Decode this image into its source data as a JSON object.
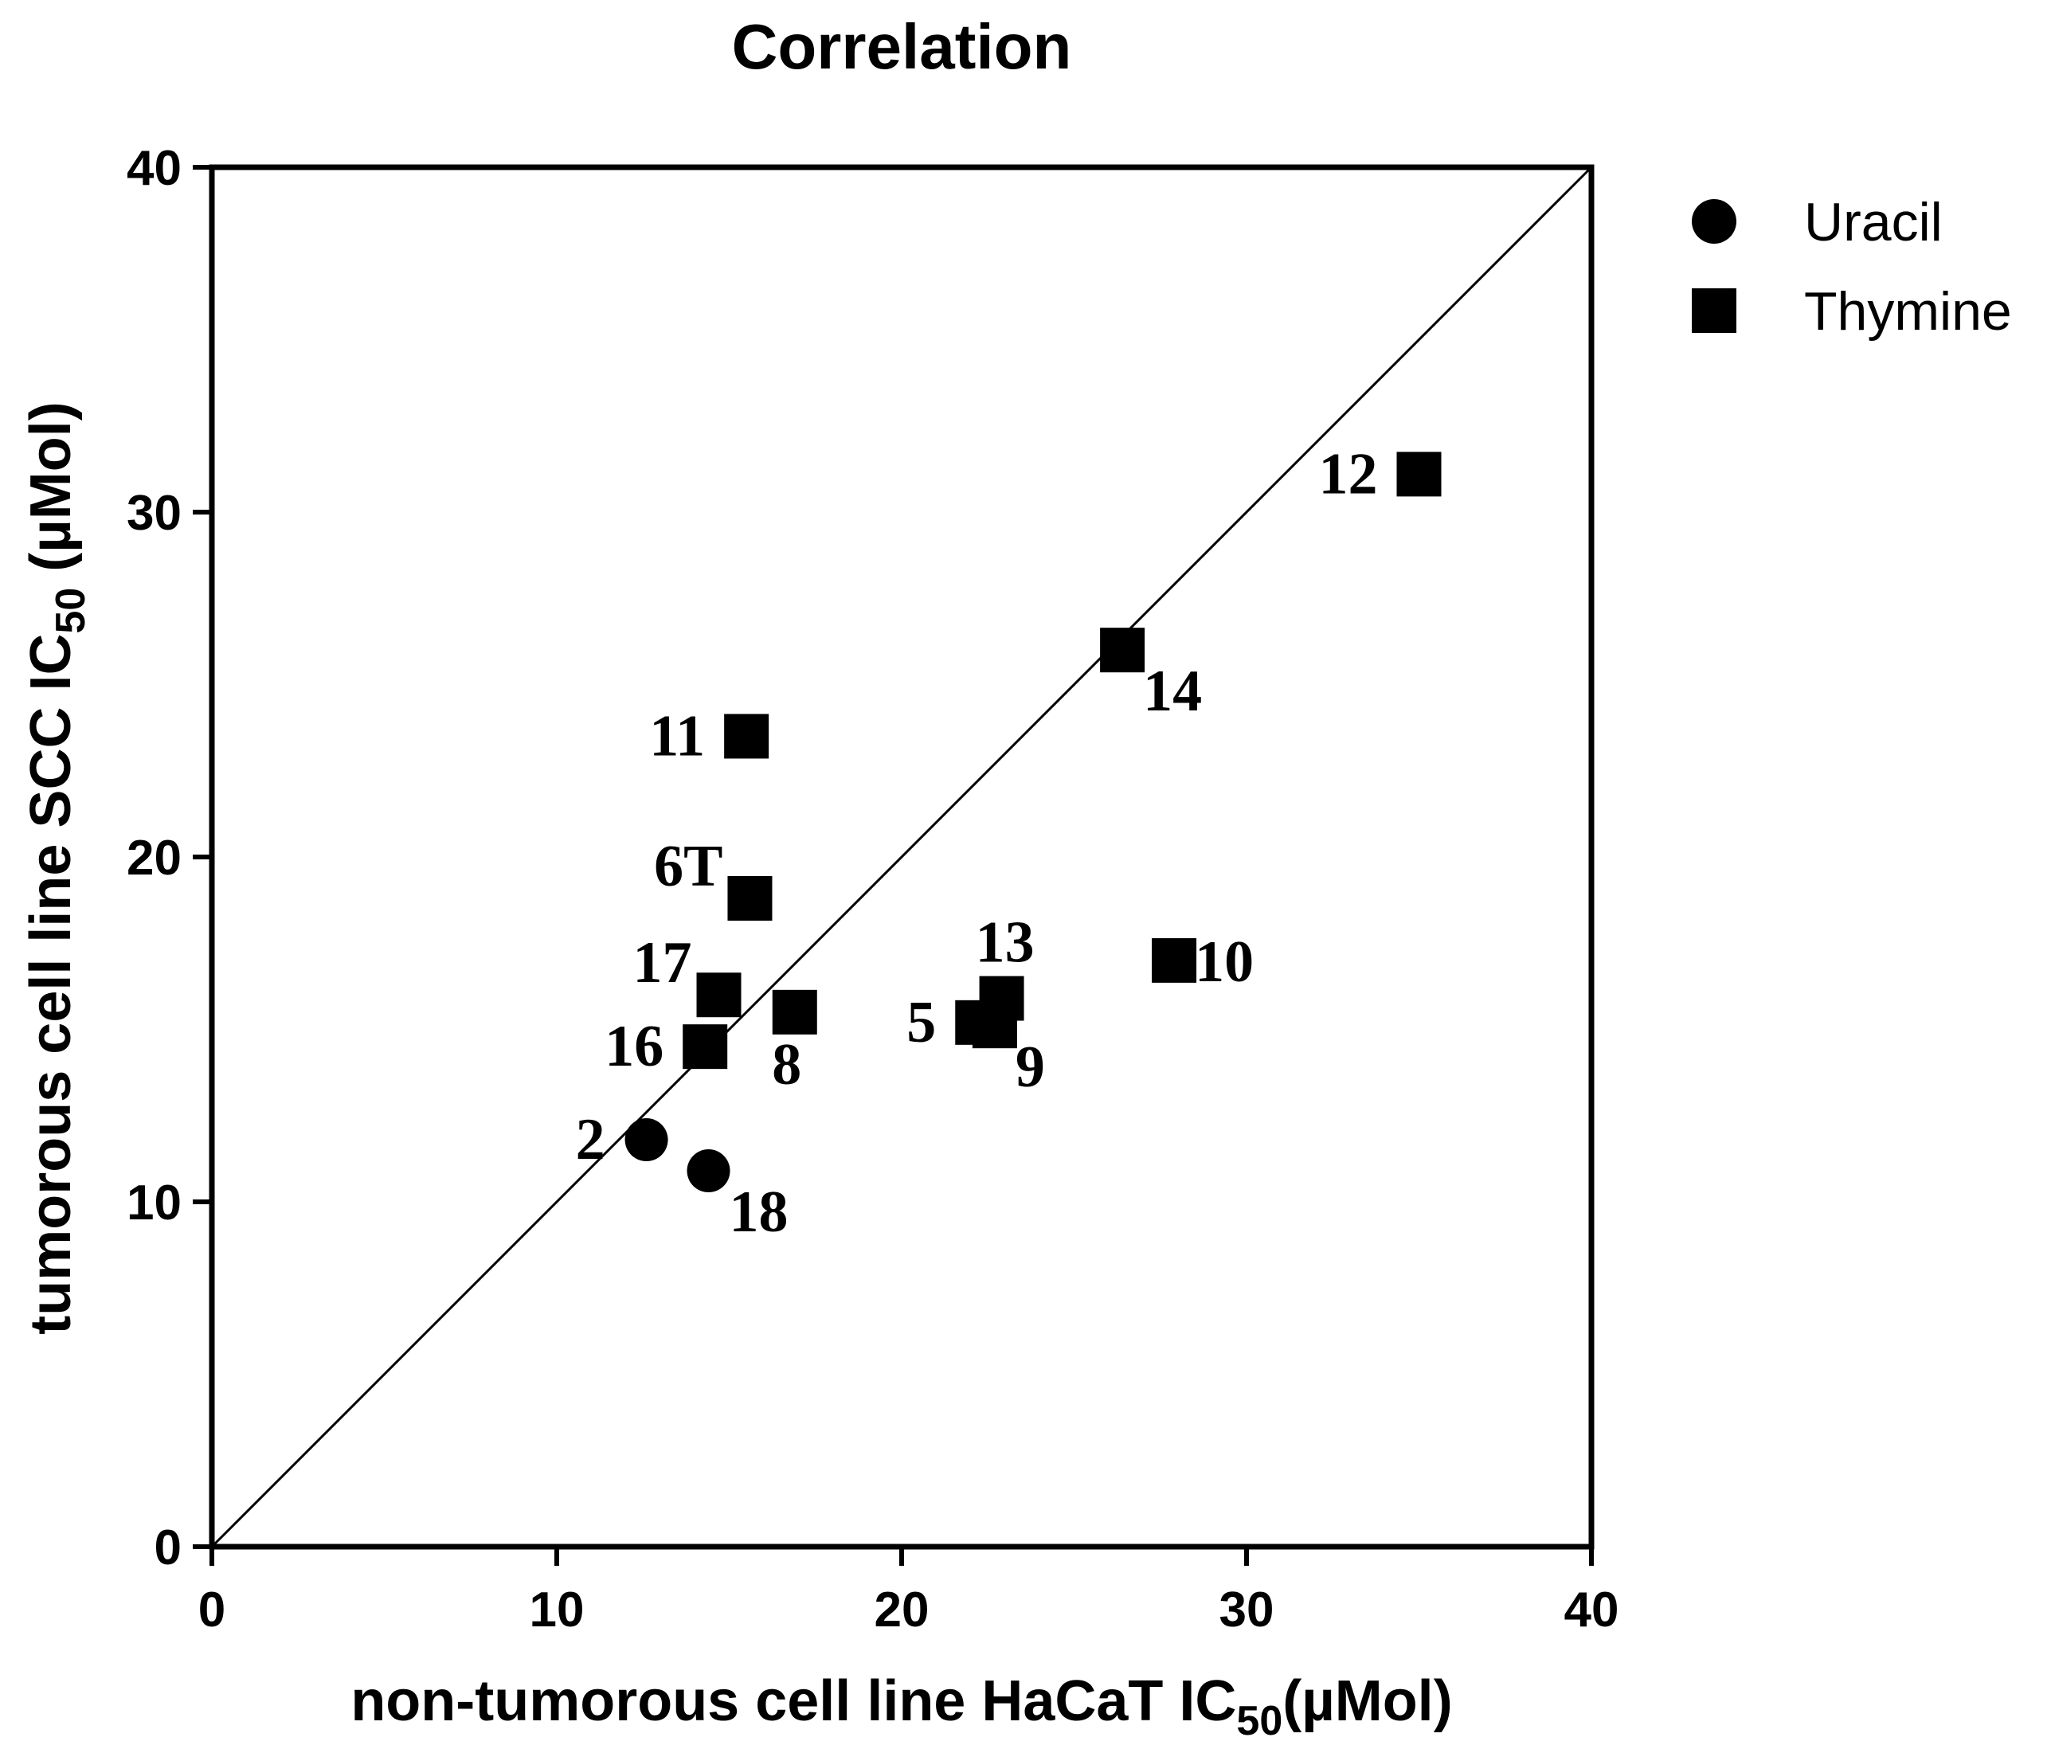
{
  "chart_data": {
    "type": "scatter",
    "title": "Correlation",
    "xlabel": {
      "main": "non-tumorous cell line HaCaT IC",
      "sub": "50",
      "suffix": "(µMol)"
    },
    "ylabel": {
      "main": "tumorous cell line SCC IC",
      "sub": "50",
      "suffix": " (µMol)"
    },
    "xlim": [
      0,
      40
    ],
    "ylim": [
      0,
      40
    ],
    "xticks": [
      "0",
      "10",
      "20",
      "30",
      "40"
    ],
    "yticks": [
      "0",
      "10",
      "20",
      "30",
      "40"
    ],
    "reference_line": {
      "from": [
        0,
        0
      ],
      "to": [
        40,
        40
      ]
    },
    "legend_position": "top-right",
    "series": [
      {
        "name": "Uracil",
        "marker": "circle",
        "color": "#000000",
        "points": [
          {
            "label": "2",
            "x": 12.6,
            "y": 11.8,
            "label_side": "left"
          },
          {
            "label": "18",
            "x": 14.4,
            "y": 10.9,
            "label_side": "below-right"
          }
        ]
      },
      {
        "name": "Thymine",
        "marker": "square",
        "color": "#000000",
        "points": [
          {
            "label": "12",
            "x": 35.0,
            "y": 31.1,
            "label_side": "left"
          },
          {
            "label": "14",
            "x": 26.4,
            "y": 26.0,
            "label_side": "below-right"
          },
          {
            "label": "11",
            "x": 15.5,
            "y": 23.5,
            "label_side": "left"
          },
          {
            "label": "6T",
            "x": 15.6,
            "y": 18.8,
            "label_side": "above-left"
          },
          {
            "label": "17",
            "x": 14.7,
            "y": 16.0,
            "label_side": "above-left"
          },
          {
            "label": "16",
            "x": 14.3,
            "y": 14.5,
            "label_side": "left"
          },
          {
            "label": "8",
            "x": 16.9,
            "y": 15.5,
            "label_side": "below-left"
          },
          {
            "label": "13",
            "x": 22.9,
            "y": 15.9,
            "label_side": "above"
          },
          {
            "label": "5",
            "x": 22.2,
            "y": 15.2,
            "label_side": "left"
          },
          {
            "label": "9",
            "x": 22.7,
            "y": 15.1,
            "label_side": "below-right"
          },
          {
            "label": "10",
            "x": 27.9,
            "y": 17.0,
            "label_side": "right"
          }
        ]
      }
    ]
  }
}
